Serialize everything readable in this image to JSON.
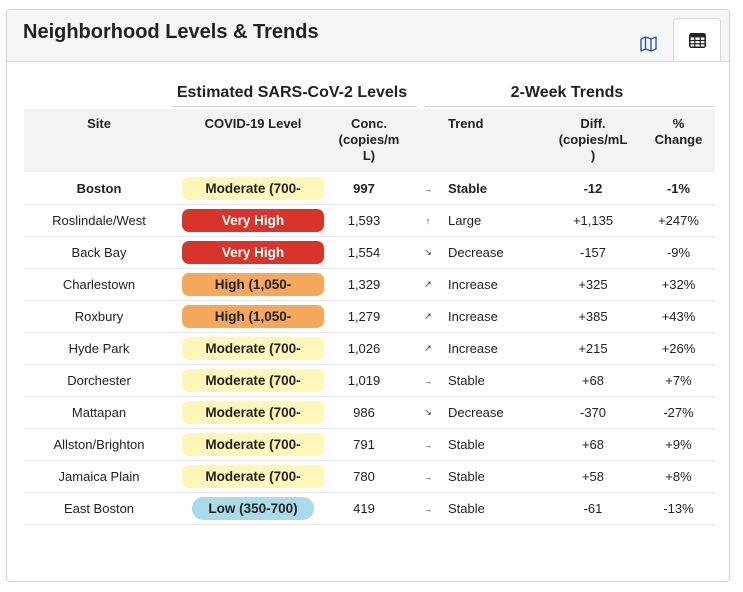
{
  "header": {
    "title": "Neighborhood Levels & Trends",
    "map_icon": "map-icon",
    "table_icon": "table-icon"
  },
  "groups": {
    "levels": "Estimated SARS-CoV-2 Levels",
    "trends": "2-Week Trends"
  },
  "columns": {
    "site": "Site",
    "level": "COVID-19 Level",
    "conc": [
      "Conc.",
      "(copies/m",
      "L)"
    ],
    "trend": "Trend",
    "diff": [
      "Diff.",
      "(copies/mL",
      ")"
    ],
    "pct": [
      "%",
      "Change"
    ]
  },
  "colors": {
    "moderate": "#fff6b8",
    "very_high": "#d9342b",
    "high": "#f5a85c",
    "low": "#a9dbe8"
  },
  "rows": [
    {
      "site": "Boston",
      "level": "Moderate (700-",
      "level_class": "moderate",
      "conc": "997",
      "arrow": "→",
      "trend": "Stable",
      "diff": "-12",
      "pct": "-1%"
    },
    {
      "site": "Roslindale/West",
      "level": "Very High",
      "level_class": "very_high",
      "conc": "1,593",
      "arrow": "↑",
      "trend": "Large",
      "diff": "+1,135",
      "pct": "+247%"
    },
    {
      "site": "Back Bay",
      "level": "Very High",
      "level_class": "very_high",
      "conc": "1,554",
      "arrow": "↘",
      "trend": "Decrease",
      "diff": "-157",
      "pct": "-9%"
    },
    {
      "site": "Charlestown",
      "level": "High (1,050-",
      "level_class": "high",
      "conc": "1,329",
      "arrow": "↗",
      "trend": "Increase",
      "diff": "+325",
      "pct": "+32%"
    },
    {
      "site": "Roxbury",
      "level": "High (1,050-",
      "level_class": "high",
      "conc": "1,279",
      "arrow": "↗",
      "trend": "Increase",
      "diff": "+385",
      "pct": "+43%"
    },
    {
      "site": "Hyde Park",
      "level": "Moderate (700-",
      "level_class": "moderate",
      "conc": "1,026",
      "arrow": "↗",
      "trend": "Increase",
      "diff": "+215",
      "pct": "+26%"
    },
    {
      "site": "Dorchester",
      "level": "Moderate (700-",
      "level_class": "moderate",
      "conc": "1,019",
      "arrow": "→",
      "trend": "Stable",
      "diff": "+68",
      "pct": "+7%"
    },
    {
      "site": "Mattapan",
      "level": "Moderate (700-",
      "level_class": "moderate",
      "conc": "986",
      "arrow": "↘",
      "trend": "Decrease",
      "diff": "-370",
      "pct": "-27%"
    },
    {
      "site": "Allston/Brighton",
      "level": "Moderate (700-",
      "level_class": "moderate",
      "conc": "791",
      "arrow": "→",
      "trend": "Stable",
      "diff": "+68",
      "pct": "+9%"
    },
    {
      "site": "Jamaica Plain",
      "level": "Moderate (700-",
      "level_class": "moderate",
      "conc": "780",
      "arrow": "→",
      "trend": "Stable",
      "diff": "+58",
      "pct": "+8%"
    },
    {
      "site": "East Boston",
      "level": "Low (350-700)",
      "level_class": "low",
      "conc": "419",
      "arrow": "→",
      "trend": "Stable",
      "diff": "-61",
      "pct": "-13%"
    }
  ]
}
